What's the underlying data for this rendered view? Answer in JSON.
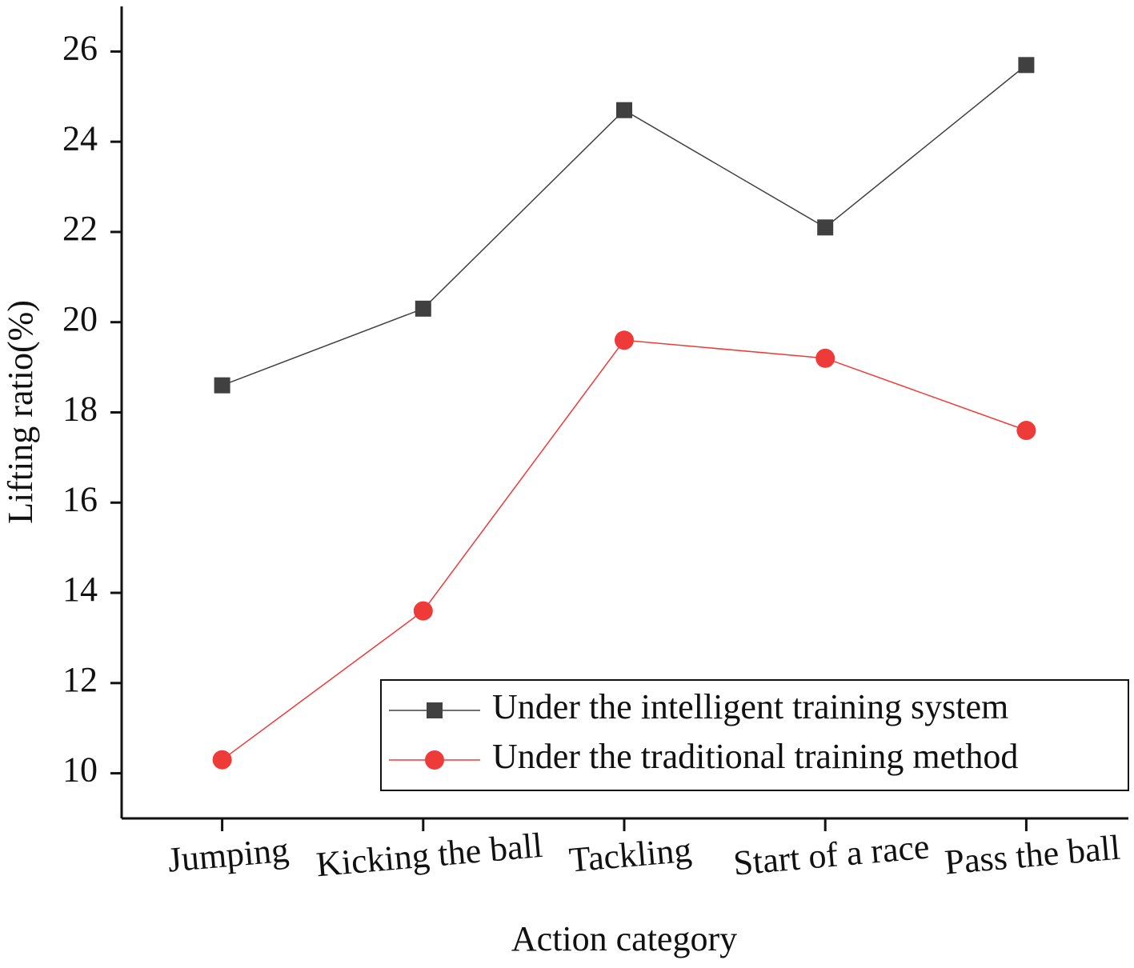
{
  "chart_data": {
    "type": "line",
    "x_label": "Action category",
    "y_label": "Lifting ratio(%)",
    "categories": [
      "Jumping",
      "Kicking the ball",
      "Tackling",
      "Start of a race",
      "Pass the ball"
    ],
    "series": [
      {
        "name": "Under the intelligent training system",
        "color": "#404040",
        "marker": "square",
        "values": [
          18.6,
          20.3,
          24.7,
          22.1,
          25.7
        ]
      },
      {
        "name": "Under the traditional training method",
        "color": "#ef3a3a",
        "marker": "circle",
        "values": [
          10.3,
          13.6,
          19.6,
          19.2,
          17.6
        ]
      }
    ],
    "ylim": [
      9,
      27
    ],
    "yticks": [
      10,
      12,
      14,
      16,
      18,
      20,
      22,
      24,
      26
    ],
    "legend": "lower right"
  }
}
